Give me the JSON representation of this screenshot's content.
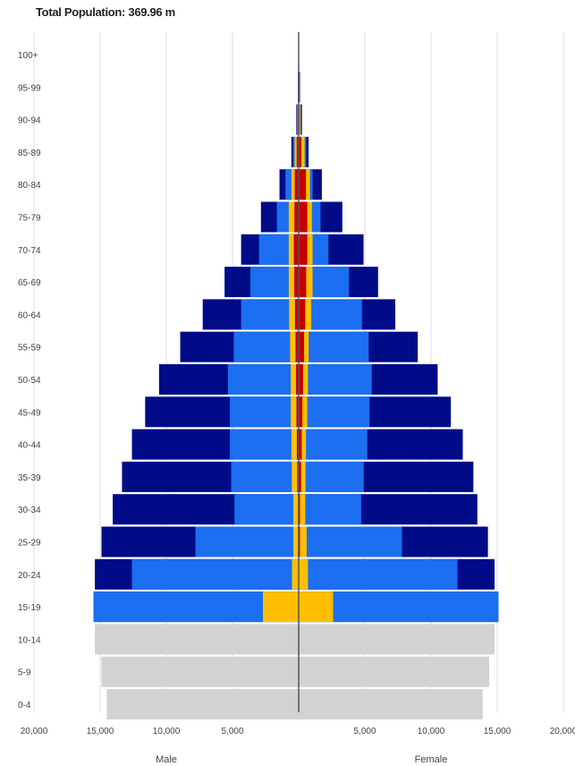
{
  "title": "Total Population: 369.96 m",
  "chart_data": {
    "type": "bar",
    "orientation": "horizontal-pyramid",
    "categories": [
      "100+",
      "95-99",
      "90-94",
      "85-89",
      "80-84",
      "75-79",
      "70-74",
      "65-69",
      "60-64",
      "55-59",
      "50-54",
      "45-49",
      "40-44",
      "35-39",
      "30-34",
      "25-29",
      "20-24",
      "15-19",
      "10-14",
      "5-9",
      "0-4"
    ],
    "x_ticks": [
      "20,000",
      "15,000",
      "10,000",
      "5,000",
      "",
      "5,000",
      "10,000",
      "15,000",
      "20,000"
    ],
    "xlim": [
      -20000,
      20000
    ],
    "left_label": "Male",
    "right_label": "Female",
    "grid": true,
    "colors": {
      "gray": "#d2d2d2",
      "dark_blue": "#000b88",
      "light_blue": "#1b6ff0",
      "yellow": "#ffbf00",
      "red": "#c40000"
    },
    "series": [
      {
        "name": "",
        "color": "gray",
        "male": [
          0,
          0,
          0,
          0,
          0,
          0,
          0,
          0,
          0,
          0,
          0,
          0,
          0,
          0,
          0,
          0,
          0,
          0,
          15400,
          14900,
          14500
        ],
        "female": [
          0,
          0,
          0,
          0,
          0,
          0,
          0,
          0,
          0,
          0,
          0,
          0,
          0,
          0,
          0,
          0,
          0,
          0,
          14800,
          14400,
          13900
        ]
      },
      {
        "name": "",
        "color": "dark_blue",
        "male": [
          10,
          60,
          180,
          550,
          1450,
          2850,
          4350,
          5600,
          7250,
          8950,
          10550,
          11600,
          12600,
          13350,
          14050,
          14900,
          15400,
          15500,
          0,
          0,
          0
        ],
        "female": [
          20,
          100,
          250,
          750,
          1750,
          3300,
          4900,
          6000,
          7300,
          9000,
          10500,
          11500,
          12400,
          13200,
          13500,
          14300,
          14800,
          15100,
          0,
          0,
          0
        ]
      },
      {
        "name": "",
        "color": "light_blue",
        "male": [
          5,
          30,
          130,
          420,
          1000,
          1650,
          3000,
          3650,
          4350,
          4900,
          5350,
          5200,
          5200,
          5100,
          4850,
          7800,
          12600,
          15500,
          0,
          0,
          0
        ],
        "female": [
          10,
          60,
          180,
          570,
          1050,
          1650,
          2250,
          3800,
          4780,
          5290,
          5520,
          5350,
          5180,
          4920,
          4720,
          7800,
          12000,
          15100,
          0,
          0,
          0
        ]
      },
      {
        "name": "",
        "color": "yellow",
        "male": [
          0,
          20,
          80,
          300,
          550,
          750,
          750,
          750,
          720,
          650,
          600,
          600,
          550,
          520,
          400,
          400,
          500,
          2700,
          0,
          0,
          0
        ],
        "female": [
          0,
          40,
          130,
          450,
          850,
          1000,
          1050,
          1050,
          950,
          750,
          700,
          650,
          550,
          520,
          500,
          600,
          700,
          2600,
          0,
          0,
          0
        ]
      },
      {
        "name": "",
        "color": "red",
        "male": [
          0,
          10,
          40,
          150,
          300,
          320,
          370,
          330,
          280,
          240,
          200,
          170,
          140,
          110,
          50,
          50,
          0,
          0,
          0,
          0,
          0
        ],
        "female": [
          0,
          20,
          60,
          200,
          550,
          650,
          650,
          570,
          500,
          410,
          330,
          280,
          230,
          180,
          100,
          100,
          0,
          0,
          0,
          0,
          0
        ]
      }
    ]
  }
}
